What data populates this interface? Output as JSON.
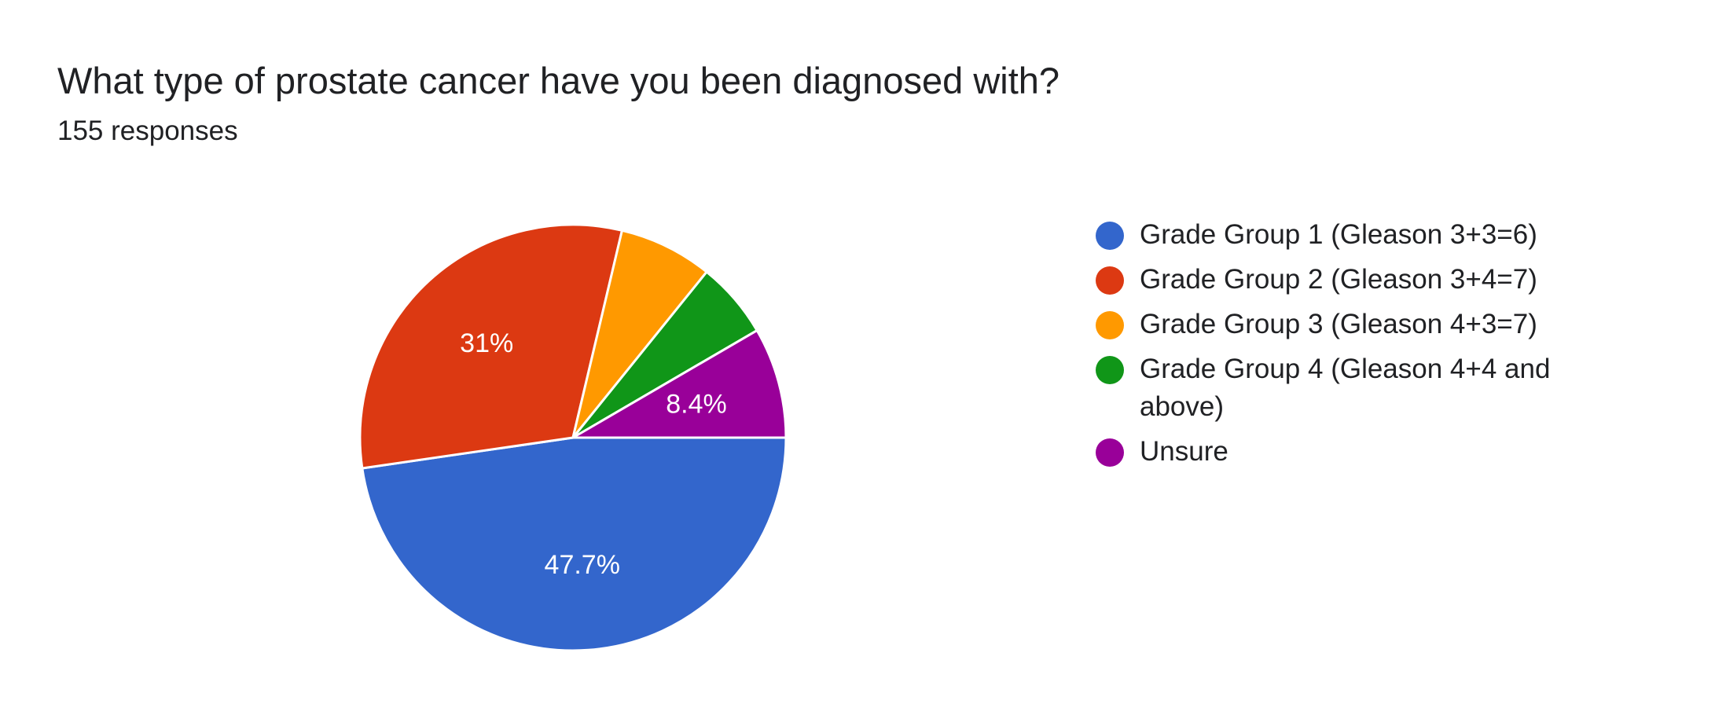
{
  "header": {
    "title": "What type of prostate cancer have you been diagnosed with?",
    "responses": "155 responses"
  },
  "chart_data": {
    "type": "pie",
    "title": "What type of prostate cancer have you been diagnosed with?",
    "subtitle": "155 responses",
    "total_responses": 155,
    "start_angle_deg": 0,
    "direction": "clockwise-from-3-oclock",
    "slice_border_color": "#ffffff",
    "legend_position": "right",
    "slices": [
      {
        "name": "Grade Group 1 (Gleason 3+3=6)",
        "value": 47.7,
        "label": "47.7%",
        "color": "#3366cc",
        "show_label": true
      },
      {
        "name": "Grade Group 2 (Gleason 3+4=7)",
        "value": 31.0,
        "label": "31%",
        "color": "#dc3912",
        "show_label": true
      },
      {
        "name": "Grade Group 3 (Gleason 4+3=7)",
        "value": 7.1,
        "label": "",
        "color": "#ff9900",
        "show_label": false
      },
      {
        "name": "Grade Group 4 (Gleason 4+4 and above)",
        "value": 5.8,
        "label": "",
        "color": "#109618",
        "show_label": false
      },
      {
        "name": "Unsure",
        "value": 8.4,
        "label": "8.4%",
        "color": "#990099",
        "show_label": true
      }
    ]
  }
}
